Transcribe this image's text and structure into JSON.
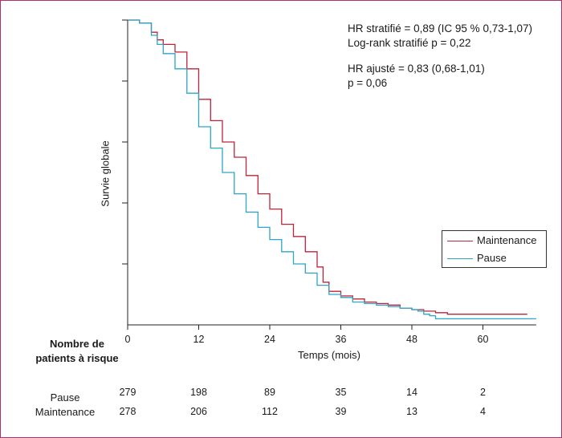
{
  "chart_data": {
    "type": "line",
    "xlabel": "Temps (mois)",
    "ylabel": "Survie globale",
    "xlim": [
      0,
      69
    ],
    "ylim": [
      0,
      1
    ],
    "x_ticks": [
      "0",
      "12",
      "24",
      "36",
      "48",
      "60"
    ],
    "y_ticks_labeled": false,
    "grid": false,
    "legend_position": "right",
    "annotations": [
      "HR stratifié = 0,89 (IC 95 % 0,73-1,07)",
      "Log-rank stratifié p = 0,22",
      "HR ajusté = 0,83 (0,68-1,01)",
      "p = 0,06"
    ],
    "series": [
      {
        "name": "Maintenance",
        "color": "#c0223b",
        "x": [
          0,
          2,
          4,
          5,
          6,
          8,
          10,
          12,
          14,
          16,
          18,
          20,
          22,
          24,
          26,
          28,
          30,
          32,
          33,
          34,
          36,
          38,
          40,
          42,
          44,
          46,
          48,
          50,
          52,
          54,
          56,
          58,
          60,
          62,
          64,
          67.5
        ],
        "y": [
          1.0,
          0.99,
          0.96,
          0.935,
          0.92,
          0.895,
          0.84,
          0.74,
          0.67,
          0.6,
          0.55,
          0.49,
          0.43,
          0.38,
          0.33,
          0.29,
          0.24,
          0.19,
          0.14,
          0.11,
          0.095,
          0.085,
          0.075,
          0.07,
          0.065,
          0.055,
          0.05,
          0.045,
          0.04,
          0.035,
          0.035,
          0.035,
          0.035,
          0.035,
          0.035,
          0.035
        ]
      },
      {
        "name": "Pause",
        "color": "#2aa6c7",
        "x": [
          0,
          2,
          4,
          5,
          6,
          8,
          10,
          12,
          14,
          16,
          18,
          20,
          22,
          24,
          26,
          28,
          30,
          32,
          34,
          36,
          38,
          40,
          42,
          44,
          46,
          48,
          49,
          50,
          51,
          52,
          53,
          56,
          60,
          64,
          69
        ],
        "y": [
          1.0,
          0.99,
          0.95,
          0.92,
          0.89,
          0.84,
          0.76,
          0.65,
          0.58,
          0.5,
          0.43,
          0.37,
          0.32,
          0.28,
          0.24,
          0.2,
          0.17,
          0.13,
          0.1,
          0.09,
          0.075,
          0.07,
          0.065,
          0.06,
          0.055,
          0.05,
          0.045,
          0.035,
          0.03,
          0.02,
          0.02,
          0.02,
          0.02,
          0.02,
          0.02
        ]
      }
    ]
  },
  "risk_table": {
    "title_line1": "Nombre de",
    "title_line2": "patients à risque",
    "rows": [
      {
        "label": "Pause",
        "values": [
          "279",
          "198",
          "89",
          "35",
          "14",
          "2"
        ]
      },
      {
        "label": "Maintenance",
        "values": [
          "278",
          "206",
          "112",
          "39",
          "13",
          "4"
        ]
      }
    ]
  }
}
